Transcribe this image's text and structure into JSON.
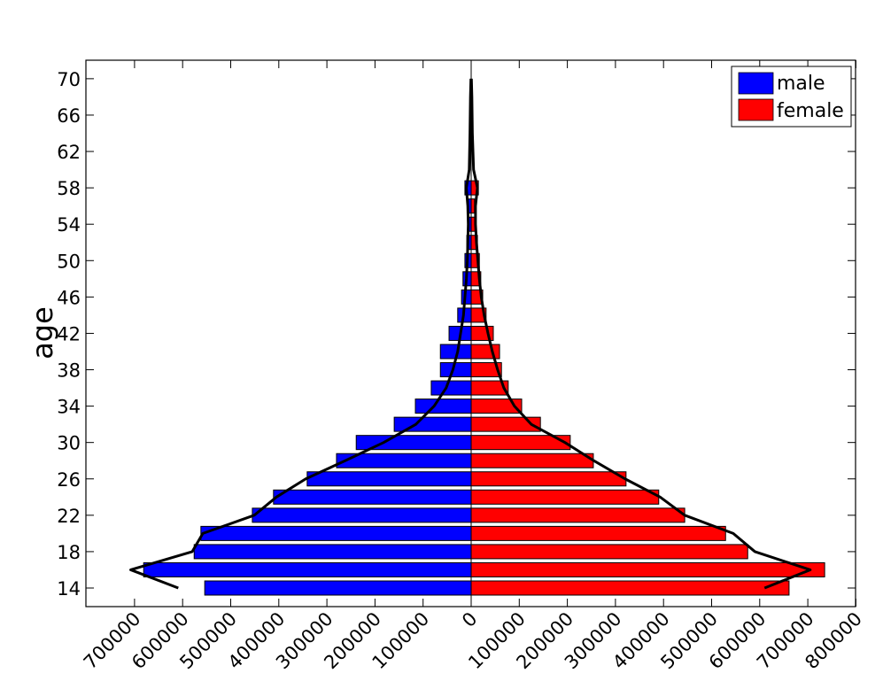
{
  "chart_data": {
    "type": "bar",
    "orientation": "horizontal",
    "subtype": "population-pyramid",
    "title": "",
    "xlabel": "",
    "ylabel": "age",
    "y_ticks": [
      "14",
      "18",
      "22",
      "26",
      "30",
      "34",
      "38",
      "42",
      "46",
      "50",
      "54",
      "58",
      "62",
      "66",
      "70"
    ],
    "x_ticks_left": [
      "700000",
      "600000",
      "500000",
      "400000",
      "300000",
      "200000",
      "100000",
      "0"
    ],
    "x_ticks_right": [
      "100000",
      "200000",
      "300000",
      "400000",
      "500000",
      "600000",
      "700000",
      "800000"
    ],
    "xlim": [
      -800000,
      800000
    ],
    "ylim": [
      12,
      72
    ],
    "grid": false,
    "legend_position": "upper right",
    "categories": [
      14,
      16,
      18,
      20,
      22,
      24,
      26,
      28,
      30,
      32,
      34,
      36,
      38,
      40,
      42,
      44,
      46,
      48,
      50,
      52,
      54,
      56,
      58
    ],
    "series": [
      {
        "name": "male",
        "color": "#0000ff",
        "values": [
          554000,
          681000,
          576000,
          562000,
          455000,
          411000,
          341000,
          280000,
          239000,
          160000,
          116000,
          83000,
          64000,
          64000,
          46000,
          28000,
          20000,
          17000,
          13000,
          9000,
          6000,
          6000,
          13000
        ]
      },
      {
        "name": "female",
        "color": "#ff0000",
        "values": [
          661000,
          735000,
          575000,
          529000,
          444000,
          390000,
          322000,
          254000,
          206000,
          144000,
          105000,
          77000,
          63000,
          59000,
          46000,
          31000,
          24000,
          20000,
          17000,
          13000,
          9000,
          7000,
          15000
        ]
      }
    ],
    "envelope_line": {
      "color": "#000000",
      "male_side": [
        [
          14,
          609000
        ],
        [
          16,
          708000
        ],
        [
          18,
          580000
        ],
        [
          20,
          558000
        ],
        [
          22,
          451000
        ],
        [
          24,
          405000
        ],
        [
          26,
          344000
        ],
        [
          28,
          262000
        ],
        [
          30,
          182000
        ],
        [
          32,
          115000
        ],
        [
          34,
          77000
        ],
        [
          36,
          52000
        ],
        [
          38,
          38000
        ],
        [
          40,
          28000
        ],
        [
          42,
          22000
        ],
        [
          44,
          16000
        ],
        [
          46,
          13000
        ],
        [
          48,
          10000
        ],
        [
          50,
          8000
        ],
        [
          52,
          7000
        ],
        [
          54,
          6000
        ],
        [
          56,
          7000
        ],
        [
          58,
          10000
        ],
        [
          60,
          4000
        ],
        [
          64,
          2500
        ],
        [
          68,
          1500
        ],
        [
          70,
          500
        ]
      ],
      "female_side": [
        [
          14,
          610000
        ],
        [
          16,
          705000
        ],
        [
          18,
          590000
        ],
        [
          20,
          545000
        ],
        [
          22,
          444000
        ],
        [
          24,
          393000
        ],
        [
          26,
          320000
        ],
        [
          28,
          255000
        ],
        [
          30,
          195000
        ],
        [
          32,
          125000
        ],
        [
          34,
          90000
        ],
        [
          36,
          68000
        ],
        [
          38,
          55000
        ],
        [
          40,
          44000
        ],
        [
          42,
          35000
        ],
        [
          44,
          27000
        ],
        [
          46,
          21000
        ],
        [
          48,
          17000
        ],
        [
          50,
          14000
        ],
        [
          52,
          11000
        ],
        [
          54,
          9000
        ],
        [
          56,
          9000
        ],
        [
          58,
          13000
        ],
        [
          60,
          5000
        ],
        [
          64,
          2500
        ],
        [
          68,
          1500
        ],
        [
          70,
          500
        ]
      ]
    }
  },
  "legend": {
    "items": [
      {
        "label": "male",
        "color": "#0000ff"
      },
      {
        "label": "female",
        "color": "#ff0000"
      }
    ]
  },
  "axes": {
    "ylabel": "age"
  }
}
